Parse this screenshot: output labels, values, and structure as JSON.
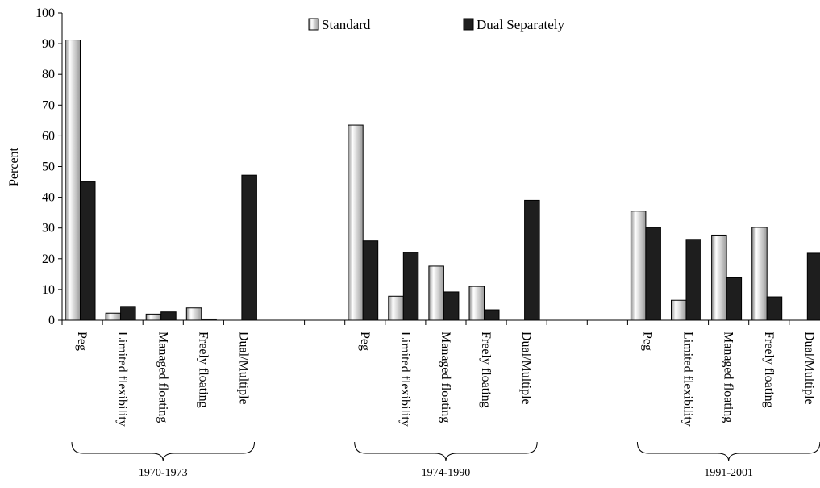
{
  "chart_data": {
    "type": "bar",
    "ylabel": "Percent",
    "xlabel": "",
    "ylim": [
      0,
      100
    ],
    "yticks": [
      0,
      10,
      20,
      30,
      40,
      50,
      60,
      70,
      80,
      90,
      100
    ],
    "legend_position": "top-center",
    "series_colors": {
      "standard": "#e6e6e6",
      "dual_separately": "#1e1e1e"
    },
    "legend": [
      "Standard",
      "Dual Separately"
    ],
    "groups": [
      {
        "period": "1970-1973",
        "categories": [
          "Peg",
          "Limited flexibility",
          "Managed floating",
          "Freely floating",
          "Dual/Multiple"
        ],
        "series": [
          {
            "name": "Standard",
            "values": [
              91.2,
              2.3,
              2.0,
              4.0,
              0
            ]
          },
          {
            "name": "Dual Separately",
            "values": [
              45.0,
              4.5,
              2.7,
              0.4,
              47.2
            ]
          }
        ]
      },
      {
        "period": "1974-1990",
        "categories": [
          "Peg",
          "Limited flexibility",
          "Managed floating",
          "Freely floating",
          "Dual/Multiple"
        ],
        "series": [
          {
            "name": "Standard",
            "values": [
              63.5,
              7.8,
              17.6,
              11.0,
              0
            ]
          },
          {
            "name": "Dual Separately",
            "values": [
              25.8,
              22.1,
              9.2,
              3.4,
              39.0
            ]
          }
        ]
      },
      {
        "period": "1991-2001",
        "categories": [
          "Peg",
          "Limited flexibility",
          "Managed floating",
          "Freely floating",
          "Dual/Multiple"
        ],
        "series": [
          {
            "name": "Standard",
            "values": [
              35.5,
              6.5,
              27.7,
              30.2,
              0
            ]
          },
          {
            "name": "Dual Separately",
            "values": [
              30.2,
              26.3,
              13.8,
              7.6,
              21.8
            ]
          }
        ]
      }
    ]
  }
}
